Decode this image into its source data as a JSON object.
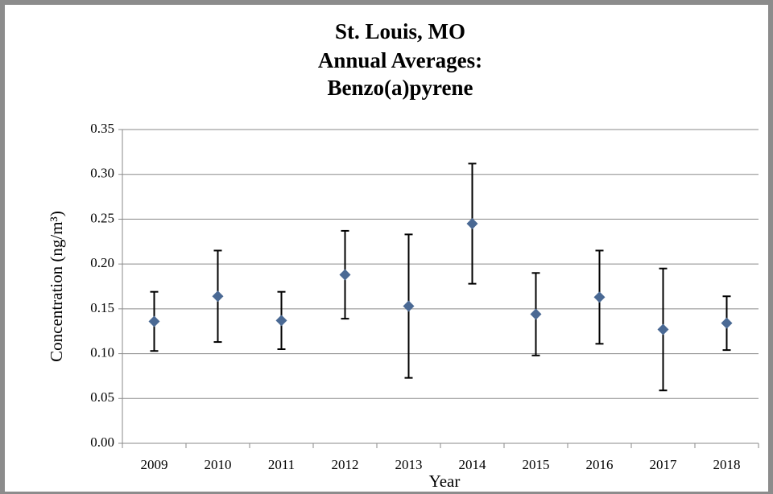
{
  "chart_data": {
    "type": "scatter",
    "title": [
      "St. Louis, MO",
      "Annual Averages:",
      "Benzo(a)pyrene"
    ],
    "x_label": "Year",
    "y_label": "Concentration (ng/m³)",
    "categories": [
      "2009",
      "2010",
      "2011",
      "2012",
      "2013",
      "2014",
      "2015",
      "2016",
      "2017",
      "2018"
    ],
    "values": [
      0.136,
      0.164,
      0.137,
      0.188,
      0.153,
      0.245,
      0.144,
      0.163,
      0.127,
      0.134
    ],
    "errors": [
      0.033,
      0.051,
      0.032,
      0.049,
      0.08,
      0.067,
      0.046,
      0.052,
      0.068,
      0.03
    ],
    "color": "#4a6994",
    "ylim": [
      0,
      0.35
    ],
    "yticks": [
      {
        "value": 0,
        "label": "0.00"
      },
      0.05,
      {
        "value": 0.1,
        "label": "0.10"
      },
      0.15,
      {
        "value": 0.2,
        "label": "0.20"
      },
      0.25,
      {
        "value": 0.3,
        "label": "0.30"
      },
      0.35
    ],
    "grid": true
  }
}
